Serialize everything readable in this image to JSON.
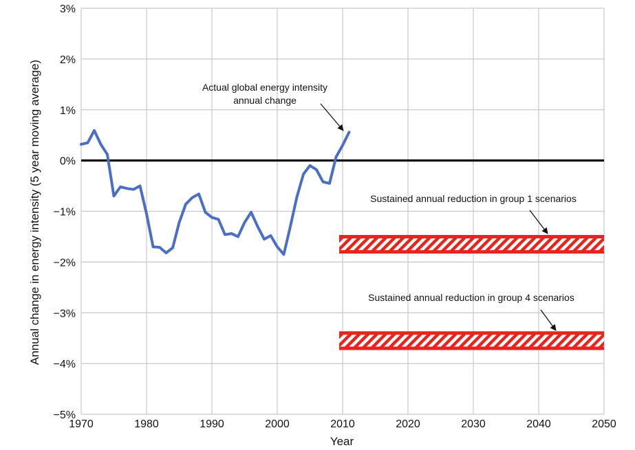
{
  "chart_data": {
    "type": "line",
    "xlabel": "Year",
    "ylabel": "Annual change in energy intensity (5 year moving average)",
    "xlim": [
      1970,
      2050
    ],
    "ylim": [
      -5,
      3
    ],
    "x_ticks": [
      1970,
      1980,
      1990,
      2000,
      2010,
      2020,
      2030,
      2040,
      2050
    ],
    "x_tick_labels": [
      "1970",
      "1980",
      "1990",
      "2000",
      "2010",
      "2020",
      "2030",
      "2040",
      "2050"
    ],
    "y_ticks": [
      3,
      2,
      1,
      0,
      -1,
      -2,
      -3,
      -4,
      -5
    ],
    "y_tick_labels": [
      "3%",
      "2%",
      "1%",
      "0%",
      "−1%",
      "−2%",
      "−3%",
      "−4%",
      "−5%"
    ],
    "grid": true,
    "reference_line": {
      "y": 0,
      "color": "#111111"
    },
    "series": [
      {
        "color": "#4a6fc4",
        "x": [
          1970,
          1971,
          1972,
          1973,
          1974,
          1975,
          1976,
          1977,
          1978,
          1979,
          1980,
          1981,
          1982,
          1983,
          1984,
          1985,
          1986,
          1987,
          1988,
          1989,
          1990,
          1991,
          1992,
          1993,
          1994,
          1995,
          1996,
          1997,
          1998,
          1999,
          2000,
          2001,
          2002,
          2003,
          2004,
          2005,
          2006,
          2007,
          2008,
          2009,
          2010,
          2011
        ],
        "y": [
          0.32,
          0.35,
          0.59,
          0.32,
          0.12,
          -0.7,
          -0.52,
          -0.55,
          -0.57,
          -0.5,
          -1.05,
          -1.7,
          -1.71,
          -1.82,
          -1.72,
          -1.22,
          -0.86,
          -0.73,
          -0.66,
          -1.02,
          -1.12,
          -1.16,
          -1.46,
          -1.44,
          -1.5,
          -1.22,
          -1.02,
          -1.3,
          -1.55,
          -1.48,
          -1.7,
          -1.85,
          -1.3,
          -0.72,
          -0.27,
          -0.1,
          -0.18,
          -0.42,
          -0.45,
          0.07,
          0.3,
          0.56
        ]
      }
    ],
    "bands": [
      {
        "label": "Sustained annual reduction in group 1 scenarios",
        "x_start": 2010,
        "x_end": 2050,
        "y_top": -1.5,
        "y_bottom": -1.8,
        "color": "#e8241c"
      },
      {
        "label": "Sustained annual reduction in group 4 scenarios",
        "x_start": 2010,
        "x_end": 2050,
        "y_top": -3.4,
        "y_bottom": -3.7,
        "color": "#e8241c"
      }
    ],
    "annotations": [
      {
        "lines": [
          "Actual global energy intensity",
          "annual change"
        ]
      }
    ]
  }
}
